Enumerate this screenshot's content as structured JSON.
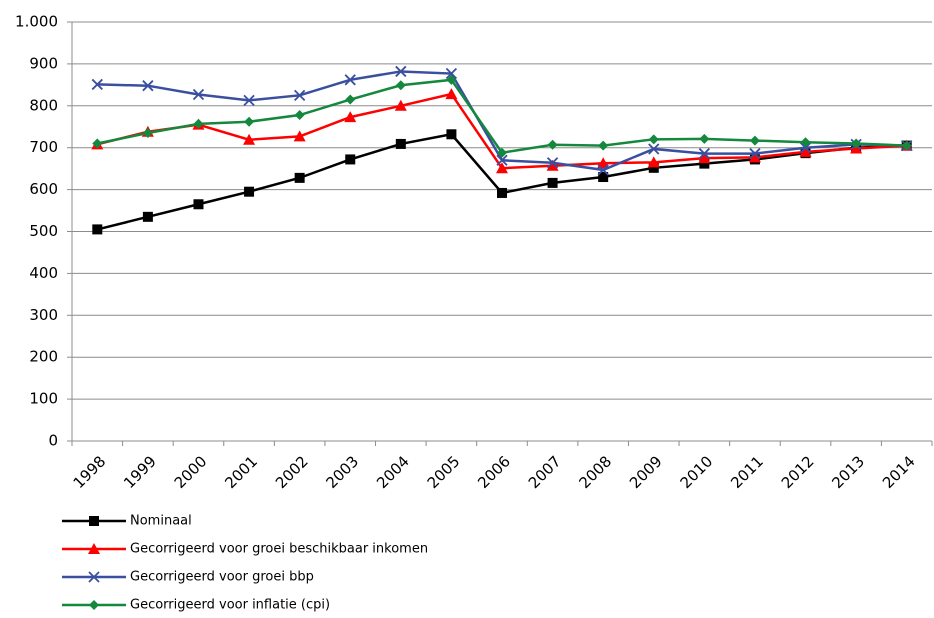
{
  "chart_data": {
    "type": "line",
    "categories": [
      "1998",
      "1999",
      "2000",
      "2001",
      "2002",
      "2003",
      "2004",
      "2005",
      "2006",
      "2007",
      "2008",
      "2009",
      "2010",
      "2011",
      "2012",
      "2013",
      "2014"
    ],
    "series": [
      {
        "name": "Nominaal",
        "color": "#000000",
        "marker": "square",
        "values": [
          505,
          535,
          565,
          595,
          628,
          672,
          709,
          732,
          592,
          616,
          630,
          652,
          662,
          672,
          687,
          700,
          705
        ]
      },
      {
        "name": "Gecorrigeerd voor groei beschikbaar inkomen",
        "color": "#ff0000",
        "marker": "triangle",
        "values": [
          708,
          738,
          755,
          719,
          727,
          773,
          800,
          828,
          651,
          657,
          663,
          665,
          675,
          677,
          690,
          698,
          705
        ]
      },
      {
        "name": "Gecorrigeerd voor groei bbp",
        "color": "#3a4fa0",
        "marker": "x",
        "values": [
          851,
          848,
          827,
          813,
          825,
          862,
          882,
          877,
          670,
          664,
          647,
          697,
          686,
          686,
          700,
          708,
          705
        ]
      },
      {
        "name": "Gecorrigeerd voor inflatie (cpi)",
        "color": "#14883c",
        "marker": "diamond",
        "values": [
          710,
          735,
          757,
          762,
          778,
          815,
          849,
          862,
          688,
          707,
          705,
          720,
          721,
          717,
          713,
          710,
          705
        ]
      }
    ],
    "ylim": [
      0,
      1000
    ],
    "yticks": [
      0,
      100,
      200,
      300,
      400,
      500,
      600,
      700,
      800,
      900,
      {
        "value": 1000,
        "label": "1.000"
      }
    ],
    "grid": true
  }
}
